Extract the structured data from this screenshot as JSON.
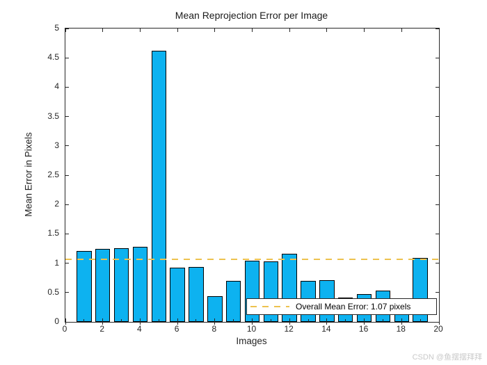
{
  "figure": {
    "watermark": "CSDN @鱼摆摆拜拜",
    "watermark_color": "#c9c9c9",
    "background": "#ffffff"
  },
  "chart_data": {
    "type": "bar",
    "title": "Mean Reprojection Error per Image",
    "xlabel": "Images",
    "ylabel": "Mean Error in Pixels",
    "xlim": [
      0,
      20
    ],
    "ylim": [
      0,
      5
    ],
    "xticks": [
      0,
      2,
      4,
      6,
      8,
      10,
      12,
      14,
      16,
      18,
      20
    ],
    "yticks": [
      "0",
      "0.5",
      "1",
      "1.5",
      "2",
      "2.5",
      "3",
      "3.5",
      "4",
      "4.5",
      "5"
    ],
    "grid": false,
    "legend_position": "lower-right-inside",
    "bar_width": 0.8,
    "bar_color": "#0db2f0",
    "bar_edge_color": "#000000",
    "axis_color": "#262626",
    "x": [
      1,
      2,
      3,
      4,
      5,
      6,
      7,
      8,
      9,
      10,
      11,
      12,
      13,
      14,
      15,
      16,
      17,
      18,
      19
    ],
    "values": [
      1.21,
      1.24,
      1.26,
      1.28,
      4.62,
      0.92,
      0.94,
      0.44,
      0.7,
      1.04,
      1.03,
      1.16,
      0.7,
      0.71,
      0.42,
      0.47,
      0.53,
      0.35,
      1.09
    ],
    "ref_line": {
      "value": 1.07,
      "style": "dashed",
      "color": "#edc24e",
      "label": "Overall Mean Error: 1.07 pixels"
    }
  }
}
